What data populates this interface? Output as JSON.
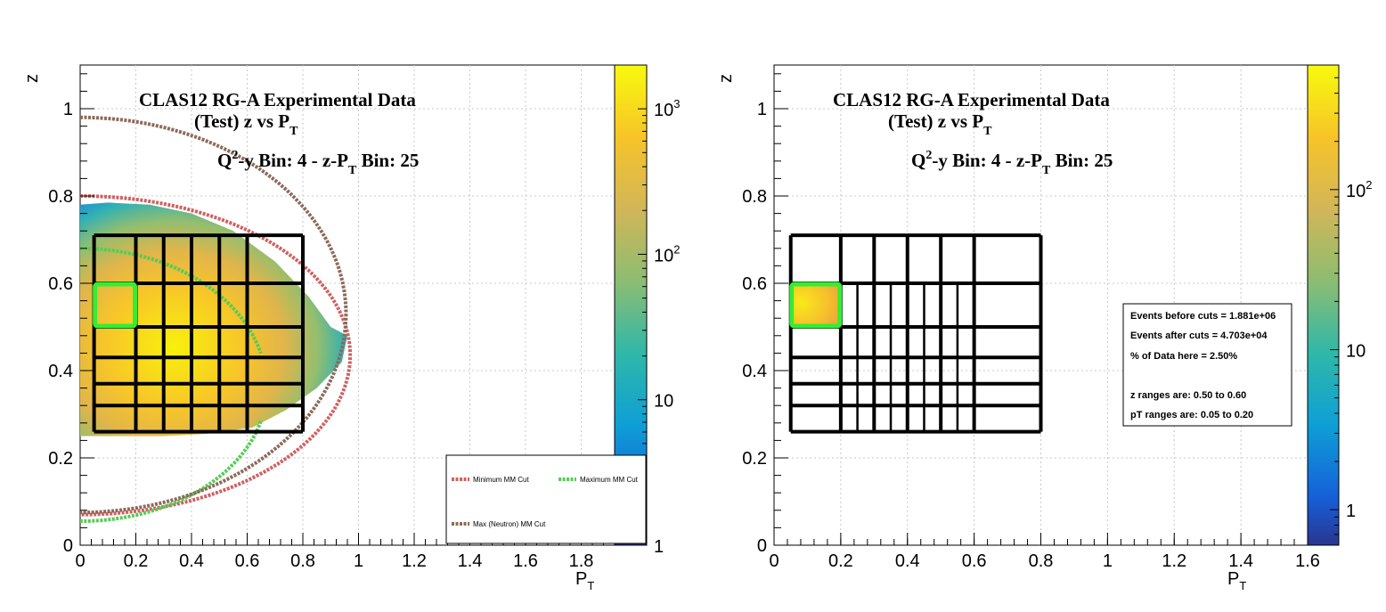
{
  "chart_data": [
    {
      "type": "heatmap",
      "title_lines": [
        "CLAS12 RG-A Experimental Data",
        "(Test) z vs P",
        "Q",
        "-y Bin: 4 - z-P",
        " Bin: 25"
      ],
      "title": {
        "line1": "CLAS12 RG-A Experimental Data",
        "line2_main": "(Test) z vs P",
        "line2_sub": "T",
        "line3_a": "Q",
        "line3_sup": "2",
        "line3_b": "-y Bin: 4 - z-P",
        "line3_sub": "T",
        "line3_c": " Bin: 25"
      },
      "xlabel_main": "P",
      "xlabel_sub": "T",
      "ylabel": "z",
      "xlim": [
        0,
        1.92
      ],
      "ylim": [
        0,
        1.1
      ],
      "x_ticks": [
        "0",
        "0.2",
        "0.4",
        "0.6",
        "0.8",
        "1",
        "1.2",
        "1.4",
        "1.6",
        "1.8"
      ],
      "y_ticks": [
        "0",
        "0.2",
        "0.4",
        "0.6",
        "0.8",
        "1"
      ],
      "x_tick_values": [
        0,
        0.2,
        0.4,
        0.6,
        0.8,
        1.0,
        1.2,
        1.4,
        1.6,
        1.8
      ],
      "y_tick_values": [
        0,
        0.2,
        0.4,
        0.6,
        0.8,
        1.0
      ],
      "colorbar": {
        "scale": "log",
        "range": [
          1,
          2000
        ],
        "labels": [
          {
            "main": "1",
            "sup": "",
            "value": 1
          },
          {
            "main": "10",
            "sup": "",
            "value": 10
          },
          {
            "main": "10",
            "sup": "2",
            "value": 100
          },
          {
            "main": "10",
            "sup": "3",
            "value": 1000
          }
        ]
      },
      "grid": true,
      "z_bin_edges": [
        0.26,
        0.32,
        0.37,
        0.43,
        0.5,
        0.6,
        0.71
      ],
      "pt_bin_edges": [
        0.05,
        0.2,
        0.3,
        0.4,
        0.5,
        0.6,
        0.8
      ],
      "highlight_bin": {
        "pt": [
          0.05,
          0.2
        ],
        "z": [
          0.5,
          0.6
        ],
        "color": "#33ee33"
      },
      "legend": {
        "placement": "bottom-right",
        "entries": [
          {
            "label": "Minimum MM Cut",
            "color": "#d06060"
          },
          {
            "label": "Maximum MM Cut",
            "color": "#55cc55"
          },
          {
            "label": "Max (Neutron) MM Cut",
            "color": "#8b6a5a"
          }
        ]
      }
    },
    {
      "type": "heatmap",
      "title": {
        "line1": "CLAS12 RG-A Experimental Data",
        "line2_main": "(Test) z vs P",
        "line2_sub": "T",
        "line3_a": "Q",
        "line3_sup": "2",
        "line3_b": "-y Bin: 4 - z-P",
        "line3_sub": "T",
        "line3_c": " Bin: 25"
      },
      "xlabel_main": "P",
      "xlabel_sub": "T",
      "ylabel": "z",
      "xlim": [
        0,
        1.6
      ],
      "ylim": [
        0,
        1.1
      ],
      "x_ticks": [
        "0",
        "0.2",
        "0.4",
        "0.6",
        "0.8",
        "1",
        "1.2",
        "1.4",
        "1.6"
      ],
      "y_ticks": [
        "0",
        "0.2",
        "0.4",
        "0.6",
        "0.8",
        "1"
      ],
      "x_tick_values": [
        0,
        0.2,
        0.4,
        0.6,
        0.8,
        1.0,
        1.2,
        1.4,
        1.6
      ],
      "y_tick_values": [
        0,
        0.2,
        0.4,
        0.6,
        0.8,
        1.0
      ],
      "colorbar": {
        "scale": "log",
        "range": [
          0.6,
          600
        ],
        "labels": [
          {
            "main": "1",
            "sup": "",
            "value": 1
          },
          {
            "main": "10",
            "sup": "",
            "value": 10
          },
          {
            "main": "10",
            "sup": "2",
            "value": 100
          }
        ]
      },
      "grid": true,
      "pt_bin_edges": [
        0.05,
        0.2,
        0.3,
        0.4,
        0.5,
        0.6,
        0.8
      ],
      "z_bin_edges": [
        0.26,
        0.32,
        0.37,
        0.43,
        0.5,
        0.6,
        0.71
      ],
      "highlight_bin": {
        "pt": [
          0.05,
          0.2
        ],
        "z": [
          0.5,
          0.6
        ],
        "color": "#33ee33"
      },
      "stats_box": {
        "lines": [
          "Events before cuts = 1.881e+06",
          "Events after cuts  = 4.703e+04",
          "% of Data here = 2.50%",
          "z   ranges are: 0.50 to 0.60",
          "pT ranges are: 0.05 to 0.20"
        ]
      }
    }
  ]
}
